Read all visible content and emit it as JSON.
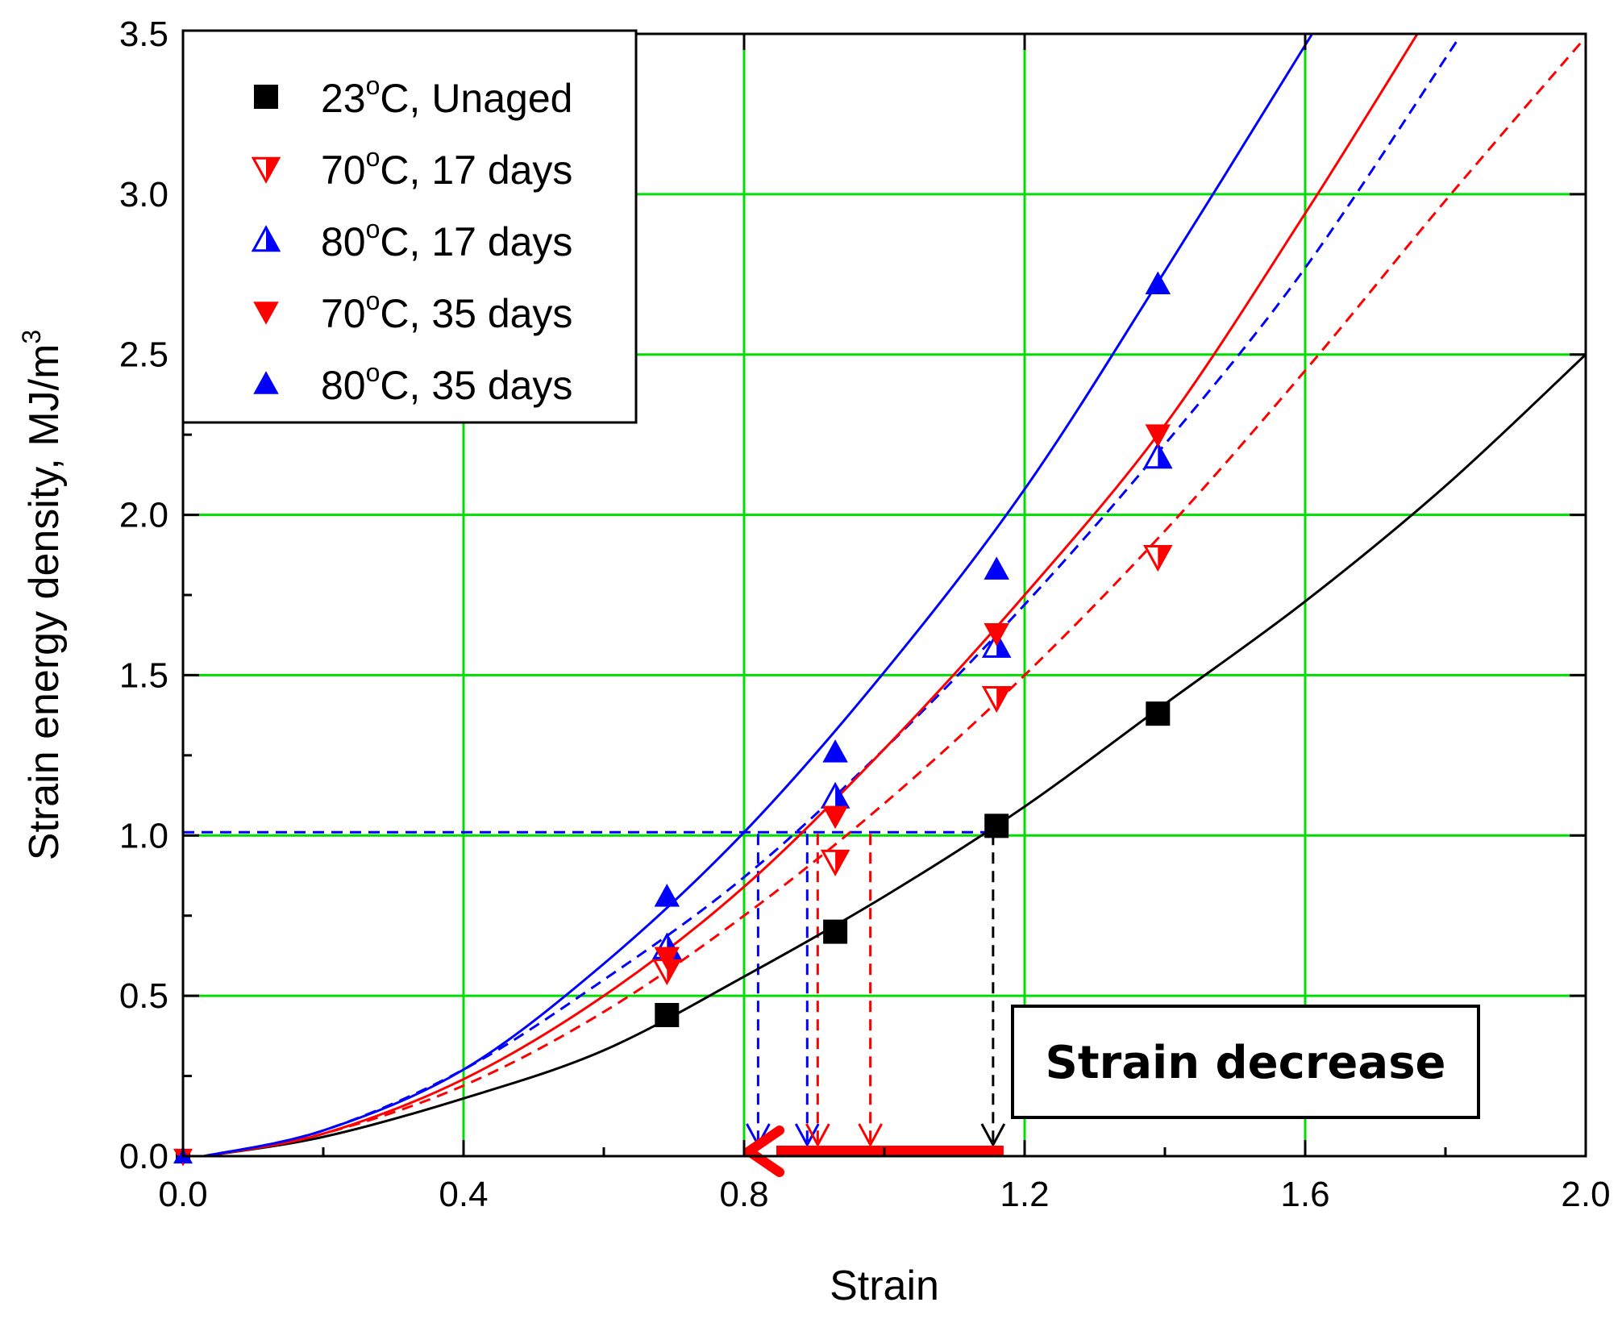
{
  "chart_data": {
    "type": "scatter",
    "xlabel": "Strain",
    "ylabel": "Strain energy density, MJ/m",
    "ylabel_superscript": "3",
    "xlim": [
      0.0,
      2.0
    ],
    "ylim": [
      0.0,
      3.5
    ],
    "x_ticks": [
      "0.0",
      "0.4",
      "0.8",
      "1.2",
      "1.6",
      "2.0"
    ],
    "y_ticks": [
      "0.0",
      "0.5",
      "1.0",
      "1.5",
      "2.0",
      "2.5",
      "3.0",
      "3.5"
    ],
    "grid": true,
    "grid_color": "#00dd00",
    "legend_position": "top-left",
    "series": [
      {
        "legend_prefix": "23",
        "legend_degree": "o",
        "legend_suffix": "C, Unaged",
        "marker": "square",
        "color": "#000000",
        "line": "solid",
        "points": [
          [
            0.0,
            0.0
          ],
          [
            0.69,
            0.44
          ],
          [
            0.93,
            0.7
          ],
          [
            1.16,
            1.03
          ],
          [
            1.39,
            1.38
          ]
        ],
        "fit": [
          [
            0.03,
            0.0
          ],
          [
            0.2,
            0.06
          ],
          [
            0.4,
            0.18
          ],
          [
            0.6,
            0.33
          ],
          [
            0.8,
            0.56
          ],
          [
            1.0,
            0.81
          ],
          [
            1.2,
            1.09
          ],
          [
            1.4,
            1.41
          ],
          [
            1.6,
            1.73
          ],
          [
            1.8,
            2.09
          ],
          [
            2.0,
            2.5
          ]
        ]
      },
      {
        "legend_prefix": "70",
        "legend_degree": "o",
        "legend_suffix": "C, 17 days",
        "marker": "tri-down-half",
        "color": "#ff0000",
        "line": "dashed",
        "points": [
          [
            0.0,
            0.0
          ],
          [
            0.69,
            0.58
          ],
          [
            0.93,
            0.92
          ],
          [
            1.16,
            1.43
          ],
          [
            1.39,
            1.87
          ]
        ],
        "fit": [
          [
            0.03,
            0.0
          ],
          [
            0.2,
            0.07
          ],
          [
            0.4,
            0.22
          ],
          [
            0.6,
            0.45
          ],
          [
            0.8,
            0.75
          ],
          [
            1.0,
            1.1
          ],
          [
            1.2,
            1.5
          ],
          [
            1.4,
            1.95
          ],
          [
            1.6,
            2.45
          ],
          [
            1.8,
            2.98
          ],
          [
            2.0,
            3.49
          ]
        ]
      },
      {
        "legend_prefix": "80",
        "legend_degree": "o",
        "legend_suffix": "C, 17 days",
        "marker": "tri-up-half",
        "color": "#0000ff",
        "line": "dashed",
        "points": [
          [
            0.0,
            0.0
          ],
          [
            0.69,
            0.65
          ],
          [
            0.93,
            1.12
          ],
          [
            1.16,
            1.59
          ],
          [
            1.39,
            2.18
          ]
        ],
        "fit": [
          [
            0.03,
            0.0
          ],
          [
            0.2,
            0.08
          ],
          [
            0.4,
            0.27
          ],
          [
            0.6,
            0.55
          ],
          [
            0.8,
            0.87
          ],
          [
            1.0,
            1.27
          ],
          [
            1.2,
            1.72
          ],
          [
            1.4,
            2.22
          ],
          [
            1.6,
            2.77
          ],
          [
            1.82,
            3.49
          ]
        ]
      },
      {
        "legend_prefix": "70",
        "legend_degree": "o",
        "legend_suffix": "C, 35 days",
        "marker": "tri-down",
        "color": "#ff0000",
        "line": "solid",
        "points": [
          [
            0.0,
            0.0
          ],
          [
            0.69,
            0.62
          ],
          [
            0.93,
            1.06
          ],
          [
            1.16,
            1.63
          ],
          [
            1.39,
            2.25
          ]
        ],
        "fit": [
          [
            0.03,
            0.0
          ],
          [
            0.2,
            0.07
          ],
          [
            0.4,
            0.24
          ],
          [
            0.6,
            0.5
          ],
          [
            0.8,
            0.84
          ],
          [
            1.0,
            1.27
          ],
          [
            1.2,
            1.75
          ],
          [
            1.4,
            2.28
          ],
          [
            1.6,
            2.94
          ],
          [
            1.76,
            3.5
          ]
        ]
      },
      {
        "legend_prefix": "80",
        "legend_degree": "o",
        "legend_suffix": "C, 35 days",
        "marker": "tri-up",
        "color": "#0000ff",
        "line": "solid",
        "points": [
          [
            0.0,
            0.0
          ],
          [
            0.69,
            0.81
          ],
          [
            0.93,
            1.26
          ],
          [
            1.16,
            1.83
          ],
          [
            1.39,
            2.72
          ]
        ],
        "fit": [
          [
            0.03,
            0.0
          ],
          [
            0.2,
            0.08
          ],
          [
            0.4,
            0.27
          ],
          [
            0.6,
            0.6
          ],
          [
            0.8,
            1.01
          ],
          [
            1.0,
            1.51
          ],
          [
            1.2,
            2.08
          ],
          [
            1.4,
            2.76
          ],
          [
            1.61,
            3.5
          ]
        ]
      }
    ],
    "guides": {
      "horizontal": {
        "y": 1.01,
        "x_from": 0.0,
        "x_to": 1.16,
        "color": "#0000ff"
      },
      "vertical": [
        {
          "x": 0.82,
          "color": "#0000ff"
        },
        {
          "x": 0.89,
          "color": "#0000ff"
        },
        {
          "x": 0.905,
          "color": "#ff0000"
        },
        {
          "x": 0.98,
          "color": "#ff0000"
        },
        {
          "x": 1.155,
          "color": "#000000"
        }
      ]
    },
    "arrow": {
      "x_from": 1.17,
      "x_to": 0.8,
      "y": 0.0,
      "color": "#ff0000"
    },
    "annotation": {
      "text": "Strain decrease",
      "anchor": "lower-right"
    }
  }
}
